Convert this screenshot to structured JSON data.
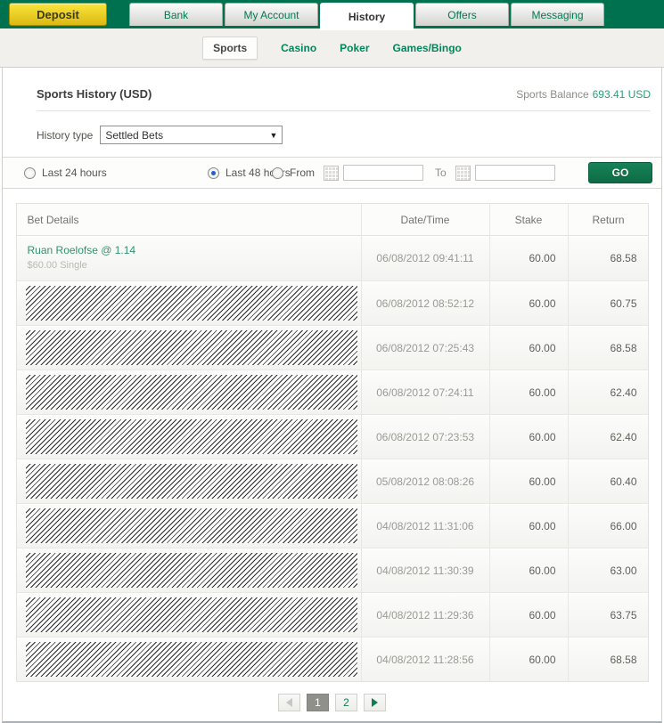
{
  "nav": {
    "deposit_label": "Deposit",
    "tabs": [
      {
        "label": "Bank",
        "active": false
      },
      {
        "label": "My Account",
        "active": false
      },
      {
        "label": "History",
        "active": true
      },
      {
        "label": "Offers",
        "active": false
      },
      {
        "label": "Messaging",
        "active": false
      }
    ]
  },
  "subnav": {
    "items": [
      {
        "label": "Sports",
        "active": true
      },
      {
        "label": "Casino",
        "active": false
      },
      {
        "label": "Poker",
        "active": false
      },
      {
        "label": "Games/Bingo",
        "active": false
      }
    ]
  },
  "page": {
    "title": "Sports History (USD)",
    "balance_label": "Sports Balance",
    "balance_value": "693.41 USD"
  },
  "filters": {
    "history_type_label": "History type",
    "history_type_value": "Settled Bets",
    "radio_24_label": "Last 24 hours",
    "radio_24_checked": false,
    "radio_48_label": "Last 48 hours",
    "radio_48_checked": true,
    "from_label": "From",
    "to_label": "To",
    "from_value": "",
    "to_value": "",
    "go_label": "GO"
  },
  "table": {
    "headers": [
      "Bet Details",
      "Date/Time",
      "Stake",
      "Return"
    ],
    "rows": [
      {
        "redacted": false,
        "bet_title": "Ruan Roelofse @ 1.14",
        "bet_sub": "$60.00 Single",
        "datetime": "06/08/2012 09:41:11",
        "stake": "60.00",
        "return_amount": "68.58"
      },
      {
        "redacted": true,
        "datetime": "06/08/2012 08:52:12",
        "stake": "60.00",
        "return_amount": "60.75"
      },
      {
        "redacted": true,
        "datetime": "06/08/2012 07:25:43",
        "stake": "60.00",
        "return_amount": "68.58"
      },
      {
        "redacted": true,
        "datetime": "06/08/2012 07:24:11",
        "stake": "60.00",
        "return_amount": "62.40"
      },
      {
        "redacted": true,
        "datetime": "06/08/2012 07:23:53",
        "stake": "60.00",
        "return_amount": "62.40"
      },
      {
        "redacted": true,
        "datetime": "05/08/2012 08:08:26",
        "stake": "60.00",
        "return_amount": "60.40"
      },
      {
        "redacted": true,
        "datetime": "04/08/2012 11:31:06",
        "stake": "60.00",
        "return_amount": "66.00"
      },
      {
        "redacted": true,
        "datetime": "04/08/2012 11:30:39",
        "stake": "60.00",
        "return_amount": "63.00"
      },
      {
        "redacted": true,
        "datetime": "04/08/2012 11:29:36",
        "stake": "60.00",
        "return_amount": "63.75"
      },
      {
        "redacted": true,
        "datetime": "04/08/2012 11:28:56",
        "stake": "60.00",
        "return_amount": "68.58"
      }
    ]
  },
  "pagination": {
    "pages": [
      "1",
      "2"
    ],
    "active_page": "1"
  },
  "colors": {
    "brand_green": "#00714e",
    "link_green": "#00875a",
    "accent_green": "#2c9c78",
    "deposit_yellow": "#f9e53c",
    "go_green": "#0e6b45",
    "radio_blue": "#1f5fd0"
  }
}
